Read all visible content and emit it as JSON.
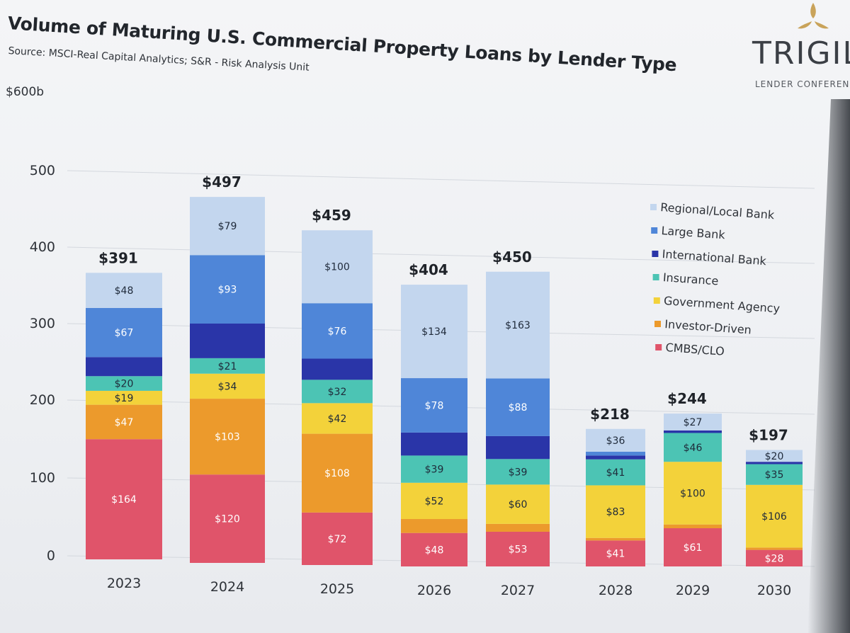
{
  "header": {
    "title": "Volume of Maturing U.S. Commercial Property Loans by Lender Type",
    "subtitle": "Source: MSCI-Real Capital Analytics; S&R - Risk Analysis Unit",
    "unit_label": "$600b"
  },
  "logo": {
    "name": "TRIGIL",
    "tagline": "LENDER CONFERENC"
  },
  "chart_data": {
    "type": "bar",
    "stacked": true,
    "categories": [
      "2023",
      "2024",
      "2025",
      "2026",
      "2027",
      "2028",
      "2029",
      "2030"
    ],
    "totals": [
      "$391",
      "$497",
      "$459",
      "$404",
      "$450",
      "$218",
      "$244",
      "$197"
    ],
    "ylim": [
      0,
      600
    ],
    "yticks": [
      "0",
      "100",
      "200",
      "300",
      "400",
      "500"
    ],
    "grid": true,
    "legend_position": "right",
    "series": [
      {
        "name": "CMBS/CLO",
        "color": "#e0546a",
        "values": [
          164,
          120,
          72,
          48,
          53,
          41,
          61,
          28
        ],
        "labels": [
          "$164",
          "$120",
          "$72",
          "$48",
          "$53",
          "$41",
          "$61",
          "$28"
        ]
      },
      {
        "name": "Investor-Driven",
        "color": "#ec9a2c",
        "values": [
          47,
          103,
          108,
          20,
          12,
          4,
          6,
          4
        ],
        "labels": [
          "$47",
          "$103",
          "$108",
          "",
          "",
          "",
          "",
          ""
        ]
      },
      {
        "name": "Government Agency",
        "color": "#f3d23a",
        "values": [
          19,
          34,
          42,
          52,
          60,
          83,
          100,
          106
        ],
        "labels": [
          "$19",
          "$34",
          "$42",
          "$52",
          "$60",
          "$83",
          "$100",
          "$106"
        ]
      },
      {
        "name": "Insurance",
        "color": "#4cc4b4",
        "values": [
          20,
          21,
          32,
          39,
          39,
          41,
          46,
          35
        ],
        "labels": [
          "$20",
          "$21",
          "$32",
          "$39",
          "$39",
          "$41",
          "$46",
          "$35"
        ]
      },
      {
        "name": "International Bank",
        "color": "#2a35a8",
        "values": [
          26,
          47,
          29,
          33,
          35,
          6,
          4,
          4
        ],
        "labels": [
          "",
          "",
          "",
          "",
          "",
          "",
          "",
          ""
        ]
      },
      {
        "name": "Large Bank",
        "color": "#4f86d8",
        "values": [
          67,
          93,
          76,
          78,
          88,
          6,
          0,
          0
        ],
        "labels": [
          "$67",
          "$93",
          "$76",
          "$78",
          "$88",
          "",
          "",
          ""
        ]
      },
      {
        "name": "Regional/Local Bank",
        "color": "#c3d6ee",
        "values": [
          48,
          79,
          100,
          134,
          163,
          36,
          27,
          20
        ],
        "labels": [
          "$48",
          "$79",
          "$100",
          "$134",
          "$163",
          "$36",
          "$27",
          "$20"
        ]
      }
    ],
    "legend_order": [
      "Regional/Local Bank",
      "Large Bank",
      "International Bank",
      "Insurance",
      "Government Agency",
      "Investor-Driven",
      "CMBS/CLO"
    ]
  }
}
